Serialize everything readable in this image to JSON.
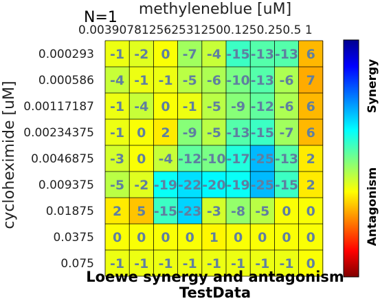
{
  "chart_data": {
    "type": "heatmap",
    "n_label": "N=1",
    "xlabel": "methyleneblue [uM]",
    "ylabel": "cycloheximide [uM]",
    "title": "Loewe synergy and antagonism",
    "subtitle": "TestData",
    "x_categories": [
      "0.0039",
      "0.0078",
      "0.0156",
      "0.03125",
      "0.0625",
      "0.125",
      "0.25",
      "0.5",
      "1"
    ],
    "x_tick_text": "0.0039078125625312500.1250.250.5 1",
    "y_categories": [
      "0.000293",
      "0.000586",
      "0.00117187",
      "0.00234375",
      "0.0046875",
      "0.009375",
      "0.01875",
      "0.0375",
      "0.075"
    ],
    "values": [
      [
        -1,
        -2,
        0,
        -7,
        -4,
        -15,
        -13,
        -13,
        6
      ],
      [
        -4,
        -1,
        -1,
        -5,
        -6,
        -10,
        -13,
        -6,
        7
      ],
      [
        -1,
        -4,
        0,
        -1,
        -5,
        -9,
        -12,
        -6,
        6
      ],
      [
        -1,
        0,
        2,
        -9,
        -5,
        -13,
        -15,
        -7,
        6
      ],
      [
        -3,
        0,
        -4,
        -12,
        -10,
        -17,
        -25,
        -13,
        2
      ],
      [
        -5,
        -2,
        -19,
        -22,
        -20,
        -19,
        -25,
        -15,
        2
      ],
      [
        2,
        5,
        -15,
        -23,
        -3,
        -8,
        -5,
        0,
        0
      ],
      [
        0,
        0,
        0,
        0,
        1,
        0,
        0,
        0,
        0
      ],
      [
        -1,
        -1,
        -1,
        -1,
        -1,
        -1,
        -1,
        -1,
        0
      ]
    ],
    "colorbar": {
      "colormap": "jet",
      "label_top": "Synergy",
      "label_bottom": "Antagonism"
    }
  }
}
